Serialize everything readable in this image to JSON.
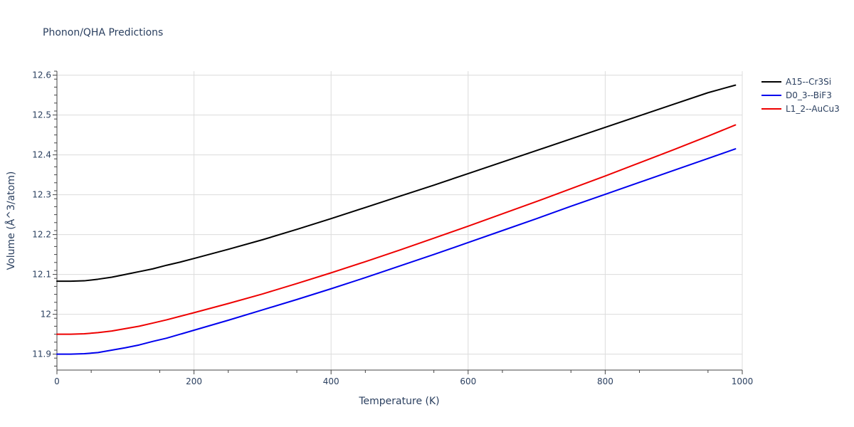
{
  "chart_data": {
    "type": "line",
    "title": "Phonon/QHA Predictions",
    "xlabel": "Temperature (K)",
    "ylabel": "Volume (Å^3/atom)",
    "xlim": [
      0,
      1000
    ],
    "ylim": [
      11.86,
      12.61
    ],
    "x_ticks": [
      0,
      200,
      400,
      600,
      800,
      1000
    ],
    "x_tick_labels": [
      "0",
      "200",
      "400",
      "600",
      "800",
      "1000"
    ],
    "y_ticks": [
      11.9,
      12.0,
      12.1,
      12.2,
      12.3,
      12.4,
      12.5,
      12.6
    ],
    "y_tick_labels": [
      "11.9",
      "12",
      "12.1",
      "12.2",
      "12.3",
      "12.4",
      "12.5",
      "12.6"
    ],
    "grid": true,
    "legend_position": "top-right",
    "series": [
      {
        "name": "A15--Cr3Si",
        "color": "#000000",
        "x": [
          0,
          20,
          40,
          60,
          80,
          100,
          120,
          140,
          160,
          180,
          200,
          250,
          300,
          350,
          400,
          450,
          500,
          550,
          600,
          650,
          700,
          750,
          800,
          850,
          900,
          950,
          990
        ],
        "y": [
          12.083,
          12.083,
          12.084,
          12.088,
          12.093,
          12.1,
          12.107,
          12.114,
          12.123,
          12.131,
          12.14,
          12.163,
          12.187,
          12.213,
          12.24,
          12.268,
          12.296,
          12.324,
          12.353,
          12.382,
          12.411,
          12.44,
          12.469,
          12.498,
          12.527,
          12.556,
          12.575
        ]
      },
      {
        "name": "D0_3--BiF3",
        "color": "#0000ee",
        "x": [
          0,
          20,
          40,
          60,
          80,
          100,
          120,
          140,
          160,
          180,
          200,
          250,
          300,
          350,
          400,
          450,
          500,
          550,
          600,
          650,
          700,
          750,
          800,
          850,
          900,
          950,
          990
        ],
        "y": [
          11.9,
          11.9,
          11.901,
          11.904,
          11.91,
          11.916,
          11.923,
          11.932,
          11.94,
          11.95,
          11.96,
          11.985,
          12.011,
          12.037,
          12.064,
          12.092,
          12.121,
          12.15,
          12.18,
          12.21,
          12.24,
          12.271,
          12.301,
          12.331,
          12.361,
          12.391,
          12.415
        ]
      },
      {
        "name": "L1_2--AuCu3",
        "color": "#ee0000",
        "x": [
          0,
          20,
          40,
          60,
          80,
          100,
          120,
          140,
          160,
          180,
          200,
          250,
          300,
          350,
          400,
          450,
          500,
          550,
          600,
          650,
          700,
          750,
          800,
          850,
          900,
          950,
          990
        ],
        "y": [
          11.95,
          11.95,
          11.951,
          11.954,
          11.958,
          11.964,
          11.97,
          11.978,
          11.986,
          11.995,
          12.004,
          12.027,
          12.051,
          12.077,
          12.104,
          12.132,
          12.161,
          12.191,
          12.221,
          12.252,
          12.283,
          12.315,
          12.347,
          12.38,
          12.413,
          12.447,
          12.475
        ]
      }
    ]
  }
}
